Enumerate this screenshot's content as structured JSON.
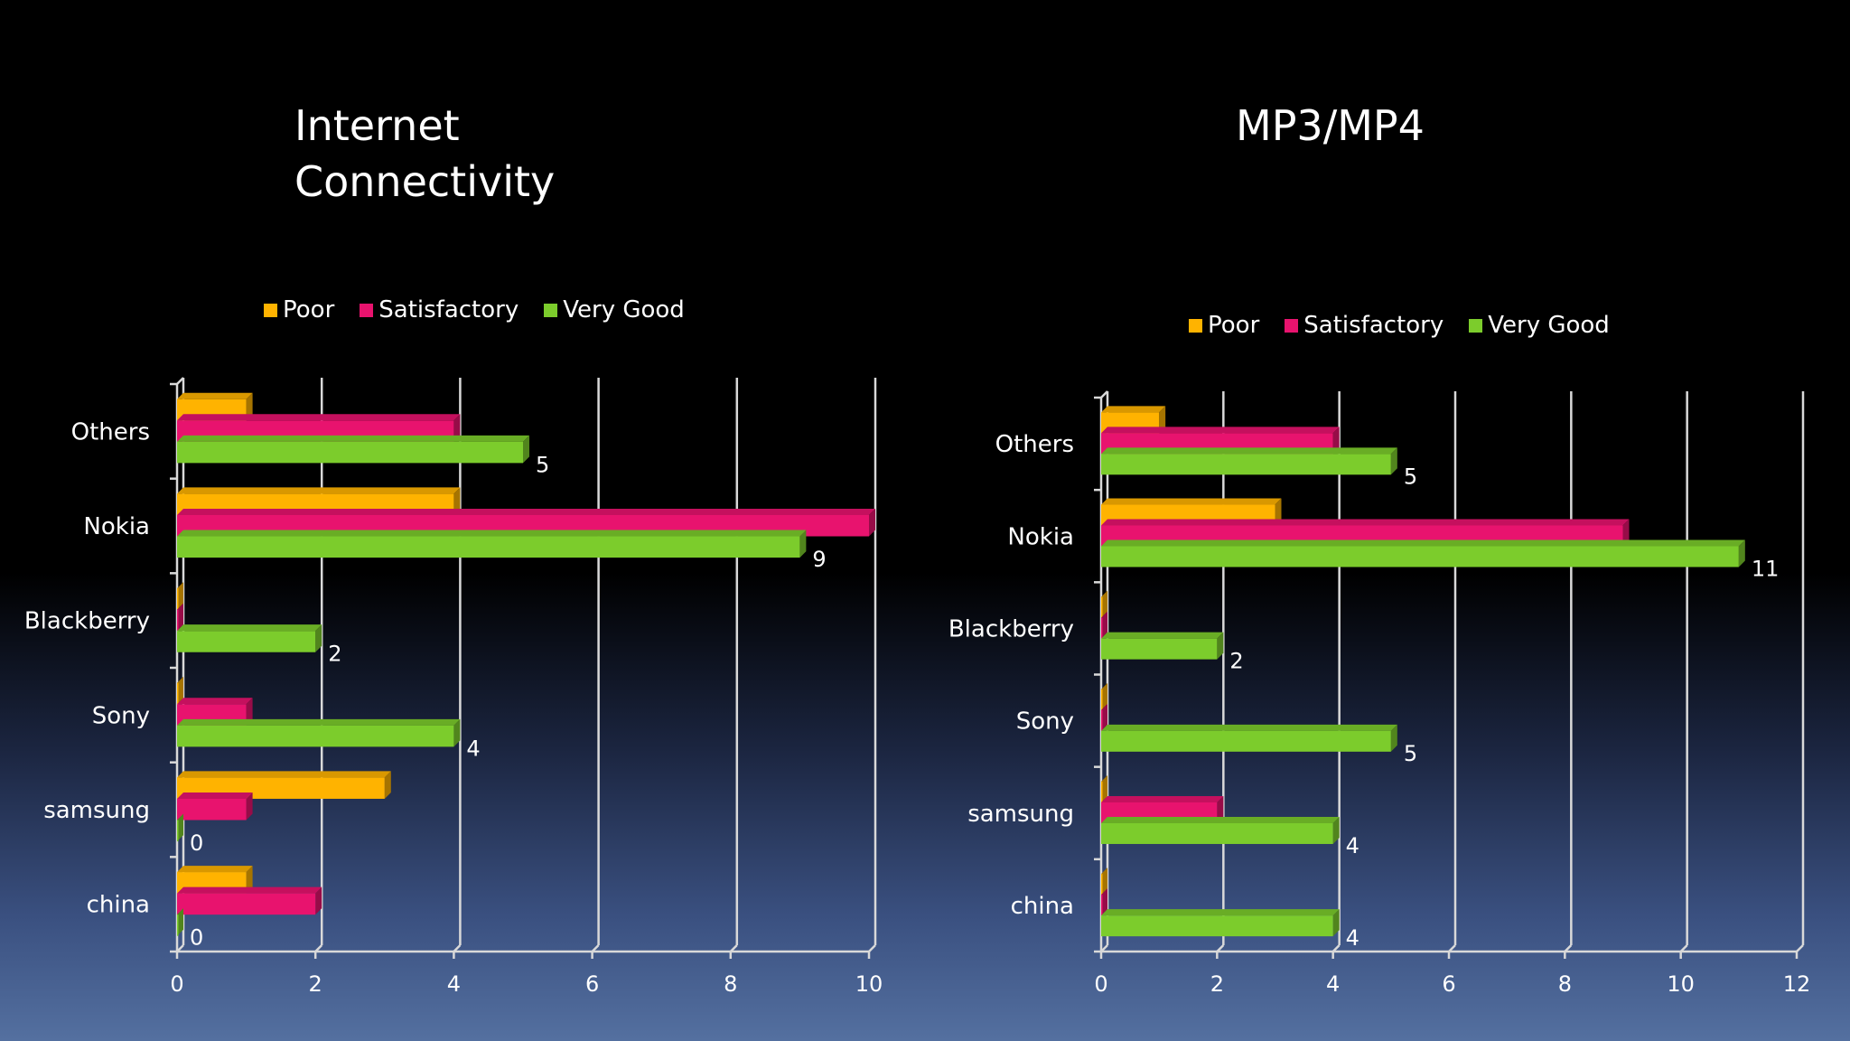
{
  "colors": {
    "poor": "#ffb300",
    "satisfactory": "#e8136e",
    "very_good": "#7ccc2c",
    "axis": "#d9d9d9"
  },
  "chart_data": [
    {
      "type": "bar",
      "orientation": "horizontal",
      "title": "Internet\nConnectivity",
      "categories": [
        "Others",
        "Nokia",
        "Blackberry",
        "Sony",
        "samsung",
        "china"
      ],
      "series": [
        {
          "name": "Poor",
          "values": [
            1,
            4,
            0,
            0,
            3,
            1
          ]
        },
        {
          "name": "Satisfactory",
          "values": [
            4,
            10,
            0,
            1,
            1,
            2
          ]
        },
        {
          "name": "Very Good",
          "values": [
            5,
            9,
            2,
            4,
            0,
            0
          ]
        }
      ],
      "data_label_series": "Very Good",
      "data_labels": [
        "5",
        "9",
        "2",
        "4",
        "0",
        "0"
      ],
      "x_ticks": [
        "0",
        "2",
        "4",
        "6",
        "8",
        "10"
      ],
      "xlim": [
        0,
        10
      ],
      "legend": [
        "Poor",
        "Satisfactory",
        "Very Good"
      ],
      "legend_position": "top"
    },
    {
      "type": "bar",
      "orientation": "horizontal",
      "title": "MP3/MP4",
      "categories": [
        "Others",
        "Nokia",
        "Blackberry",
        "Sony",
        "samsung",
        "china"
      ],
      "series": [
        {
          "name": "Poor",
          "values": [
            1,
            3,
            0,
            0,
            0,
            0
          ]
        },
        {
          "name": "Satisfactory",
          "values": [
            4,
            9,
            0,
            0,
            2,
            0
          ]
        },
        {
          "name": "Very Good",
          "values": [
            5,
            11,
            2,
            5,
            4,
            4
          ]
        }
      ],
      "data_label_series": "Very Good",
      "data_labels": [
        "5",
        "11",
        "2",
        "5",
        "4",
        "4"
      ],
      "x_ticks": [
        "0",
        "2",
        "4",
        "6",
        "8",
        "10",
        "12"
      ],
      "xlim": [
        0,
        12
      ],
      "legend": [
        "Poor",
        "Satisfactory",
        "Very Good"
      ],
      "legend_position": "top"
    }
  ]
}
